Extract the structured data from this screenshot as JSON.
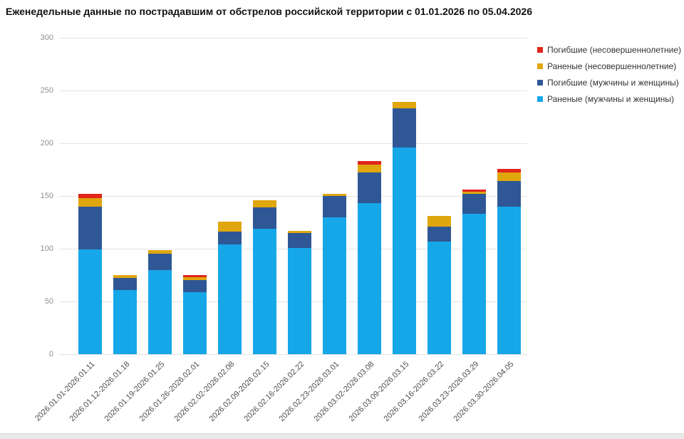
{
  "title": "Еженедельные данные по пострадавшим от обстрелов российской территории с 01.01.2026 по 05.04.2026",
  "legend": {
    "items": [
      {
        "label": "Погибшие (несовершеннолетние)",
        "color": "#e1251b"
      },
      {
        "label": "Раненые (несовершеннолетние)",
        "color": "#e0a60e"
      },
      {
        "label": "Погибшие (мужчины и женщины)",
        "color": "#2f5796"
      },
      {
        "label": "Раненые (мужчины и женщины)",
        "color": "#16a7e8"
      }
    ]
  },
  "y_axis": {
    "ticks": [
      300,
      250,
      200,
      150,
      100,
      50,
      0
    ]
  },
  "chart_data": {
    "type": "bar",
    "stacked": true,
    "title": "Еженедельные данные по пострадавшим от обстрелов российской территории с 01.01.2026 по 05.04.2026",
    "xlabel": "",
    "ylabel": "",
    "ylim": [
      0,
      300
    ],
    "grid": true,
    "legend_position": "top-right",
    "categories": [
      "2026.01.01-2026.01.11",
      "2026.01.12-2026.01.18",
      "2026.01.19-2026.01.25",
      "2026.01.26-2026.02.01",
      "2026.02.02-2026.02.08",
      "2026.02.09-2026.02.15",
      "2026.02.16-2026.02.22",
      "2026.02.23-2026.03.01",
      "2026.03.02-2026.03.08",
      "2026.03.09-2026.03.15",
      "2026.03.16-2026.03.22",
      "2026.03.23-2026.03.29",
      "2026.03.30-2026.04.05"
    ],
    "series": [
      {
        "name": "Раненые (мужчины и женщины)",
        "color": "#16a7e8",
        "values": [
          99,
          61,
          80,
          59,
          104,
          119,
          101,
          130,
          143,
          196,
          107,
          133,
          140
        ]
      },
      {
        "name": "Погибшие (мужчины и женщины)",
        "color": "#2f5796",
        "values": [
          41,
          11,
          15,
          11,
          12,
          20,
          14,
          20,
          29,
          37,
          14,
          19,
          24
        ]
      },
      {
        "name": "Раненые (несовершеннолетние)",
        "color": "#e0a60e",
        "values": [
          8,
          3,
          4,
          3,
          10,
          7,
          2,
          2,
          8,
          6,
          10,
          2,
          8
        ]
      },
      {
        "name": "Погибшие (несовершеннолетние)",
        "color": "#e1251b",
        "values": [
          4,
          0,
          0,
          2,
          0,
          0,
          0,
          0,
          3,
          0,
          0,
          2,
          4
        ]
      }
    ],
    "totals": [
      152,
      75,
      99,
      75,
      126,
      146,
      117,
      152,
      183,
      239,
      131,
      156,
      176
    ]
  }
}
